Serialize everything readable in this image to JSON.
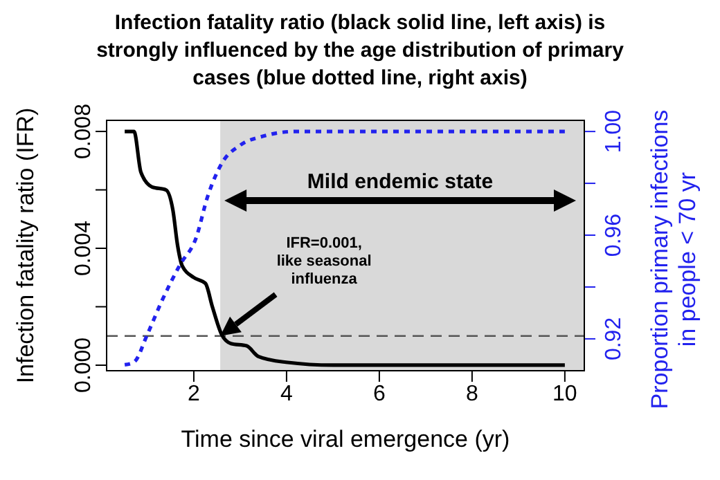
{
  "chart_data": {
    "type": "line",
    "title": "Infection fatality ratio (black solid line, left axis) is strongly influenced by the age distribution of primary cases (blue dotted line, right axis)",
    "xlabel": "Time since viral emergence (yr)",
    "ylabel": "Infection fatality ratio (IFR)",
    "y2label": "Proportion primary infections in people  < 70 yr",
    "xlim": [
      0.12,
      10.42
    ],
    "xticks": [
      2,
      4,
      6,
      8,
      10
    ],
    "ylim": [
      -0.00019,
      0.00838
    ],
    "yticks": [
      {
        "value": 0,
        "label": "0.000"
      },
      {
        "value": 0.002,
        "label": null
      },
      {
        "value": 0.004,
        "label": "0.004"
      },
      {
        "value": 0.006,
        "label": null
      },
      {
        "value": 0.008,
        "label": "0.008"
      }
    ],
    "y2lim": [
      0.9077,
      1.0043
    ],
    "y2ticks": [
      0.92,
      {
        "value": 0.94,
        "label": null
      },
      0.96,
      {
        "value": 0.98,
        "label": null
      },
      {
        "value": 1,
        "label": "1.00"
      }
    ],
    "marker": "none",
    "series": [
      {
        "color": "#000000",
        "line_style": "solid",
        "x": [
          0.51,
          0.71,
          0.86,
          1.1,
          1.4,
          1.55,
          1.65,
          1.75,
          2.0,
          2.25,
          2.4,
          2.6,
          2.8,
          3.14,
          3.39,
          3.99,
          5.0,
          10.0
        ],
        "values": [
          0.008,
          0.008,
          0.0066,
          0.0061,
          0.006,
          0.0053,
          0.0041,
          0.0034,
          0.003,
          0.0028,
          0.002,
          0.00105,
          0.00074,
          0.00066,
          0.0003,
          0.0001,
          0.0,
          0.0
        ]
      },
      {
        "color": "#2222ee",
        "line_style": "dotted",
        "axis": "y2",
        "x": [
          0.51,
          0.71,
          1.0,
          1.3,
          1.7,
          2.05,
          2.3,
          2.6,
          3.0,
          3.5,
          4.2,
          10.0
        ],
        "values": [
          0.91,
          0.911,
          0.9218,
          0.9342,
          0.9485,
          0.959,
          0.975,
          0.9876,
          0.9947,
          0.9982,
          1.0,
          1.0
        ]
      }
    ],
    "ref_lines": [
      {
        "axis": "y",
        "value": 0.001,
        "color": "#555555",
        "line_style": "dashed",
        "label": "IFR=0.001, like seasonal influenza"
      }
    ],
    "bands": [
      {
        "axis": "x",
        "from": 2.57,
        "to": 10.42,
        "label": "Mild endemic state",
        "color": "#d9d9d9"
      }
    ]
  }
}
